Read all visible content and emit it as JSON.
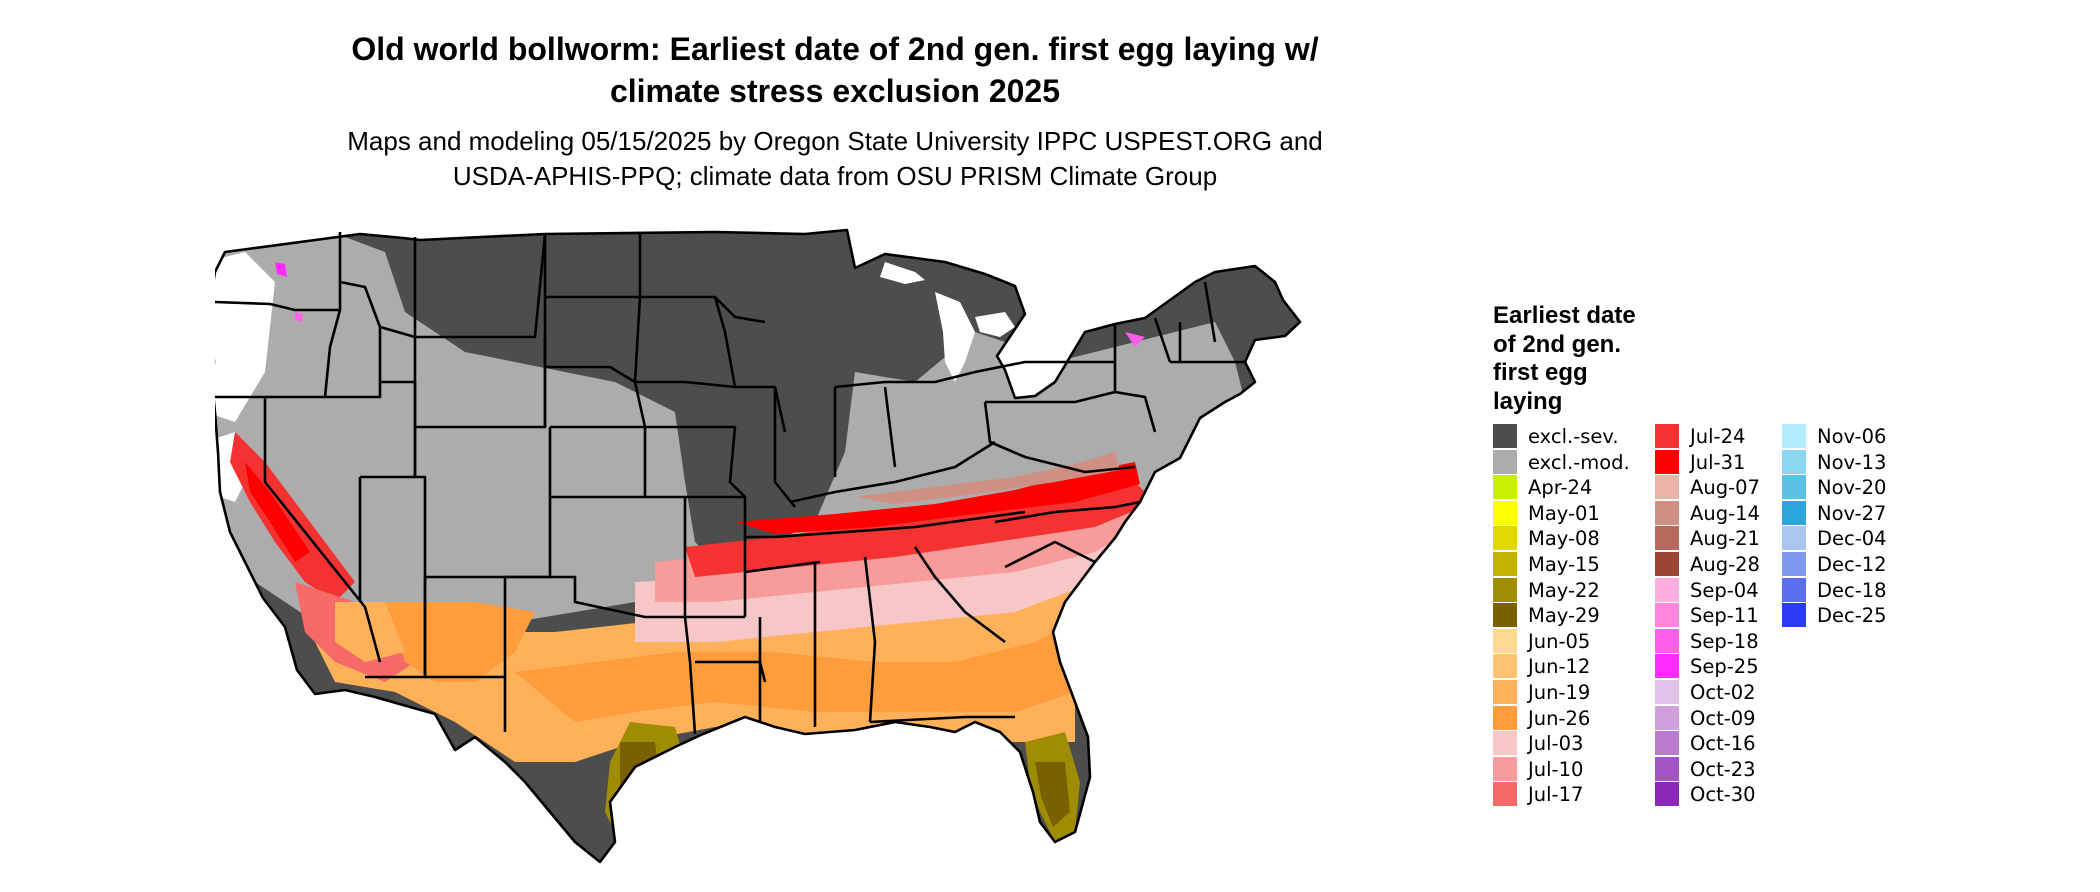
{
  "title_line1": "Old world bollworm: Earliest date of 2nd gen. first egg laying w/",
  "title_line2": "climate stress exclusion 2025",
  "subtitle_line1": "Maps and modeling 05/15/2025 by Oregon State University IPPC USPEST.ORG and",
  "subtitle_line2": "USDA-APHIS-PPQ; climate data from OSU PRISM Climate Group",
  "legend": {
    "title": [
      "Earliest date",
      "of 2nd gen.",
      "first egg",
      "laying"
    ],
    "columns": [
      [
        {
          "label": "excl.-sev.",
          "color": "#4d4d4d"
        },
        {
          "label": "excl.-mod.",
          "color": "#acacac"
        },
        {
          "label": "Apr-24",
          "color": "#c8f000"
        },
        {
          "label": "May-01",
          "color": "#ffff00"
        },
        {
          "label": "May-08",
          "color": "#e1d800"
        },
        {
          "label": "May-15",
          "color": "#c3b300"
        },
        {
          "label": "May-22",
          "color": "#a08c00"
        },
        {
          "label": "May-29",
          "color": "#7a6000"
        },
        {
          "label": "Jun-05",
          "color": "#ffd990"
        },
        {
          "label": "Jun-12",
          "color": "#ffc472"
        },
        {
          "label": "Jun-19",
          "color": "#ffb15a"
        },
        {
          "label": "Jun-26",
          "color": "#ff9c3c"
        },
        {
          "label": "Jul-03",
          "color": "#f7c7c7"
        },
        {
          "label": "Jul-10",
          "color": "#f79b9b"
        },
        {
          "label": "Jul-17",
          "color": "#f76a6a"
        }
      ],
      [
        {
          "label": "Jul-24",
          "color": "#f43232"
        },
        {
          "label": "Jul-31",
          "color": "#ff0000"
        },
        {
          "label": "Aug-07",
          "color": "#ebb3aa"
        },
        {
          "label": "Aug-14",
          "color": "#cf8f83"
        },
        {
          "label": "Aug-21",
          "color": "#b76a5c"
        },
        {
          "label": "Aug-28",
          "color": "#9b4535"
        },
        {
          "label": "Sep-04",
          "color": "#ffaedf"
        },
        {
          "label": "Sep-11",
          "color": "#ff86dc"
        },
        {
          "label": "Sep-18",
          "color": "#ff5ee8"
        },
        {
          "label": "Sep-25",
          "color": "#ff2cff"
        },
        {
          "label": "Oct-02",
          "color": "#e3c2ea"
        },
        {
          "label": "Oct-09",
          "color": "#cfa0dc"
        },
        {
          "label": "Oct-16",
          "color": "#ba7bcf"
        },
        {
          "label": "Oct-23",
          "color": "#a353c4"
        },
        {
          "label": "Oct-30",
          "color": "#8a27b6"
        }
      ],
      [
        {
          "label": "Nov-06",
          "color": "#b2ecff"
        },
        {
          "label": "Nov-13",
          "color": "#89d7f0"
        },
        {
          "label": "Nov-20",
          "color": "#5fc0e6"
        },
        {
          "label": "Nov-27",
          "color": "#2ea5da"
        },
        {
          "label": "Dec-04",
          "color": "#a9c5f0"
        },
        {
          "label": "Dec-12",
          "color": "#7f99ee"
        },
        {
          "label": "Dec-18",
          "color": "#5a6ff0"
        },
        {
          "label": "Dec-25",
          "color": "#2a3af5"
        }
      ]
    ]
  }
}
